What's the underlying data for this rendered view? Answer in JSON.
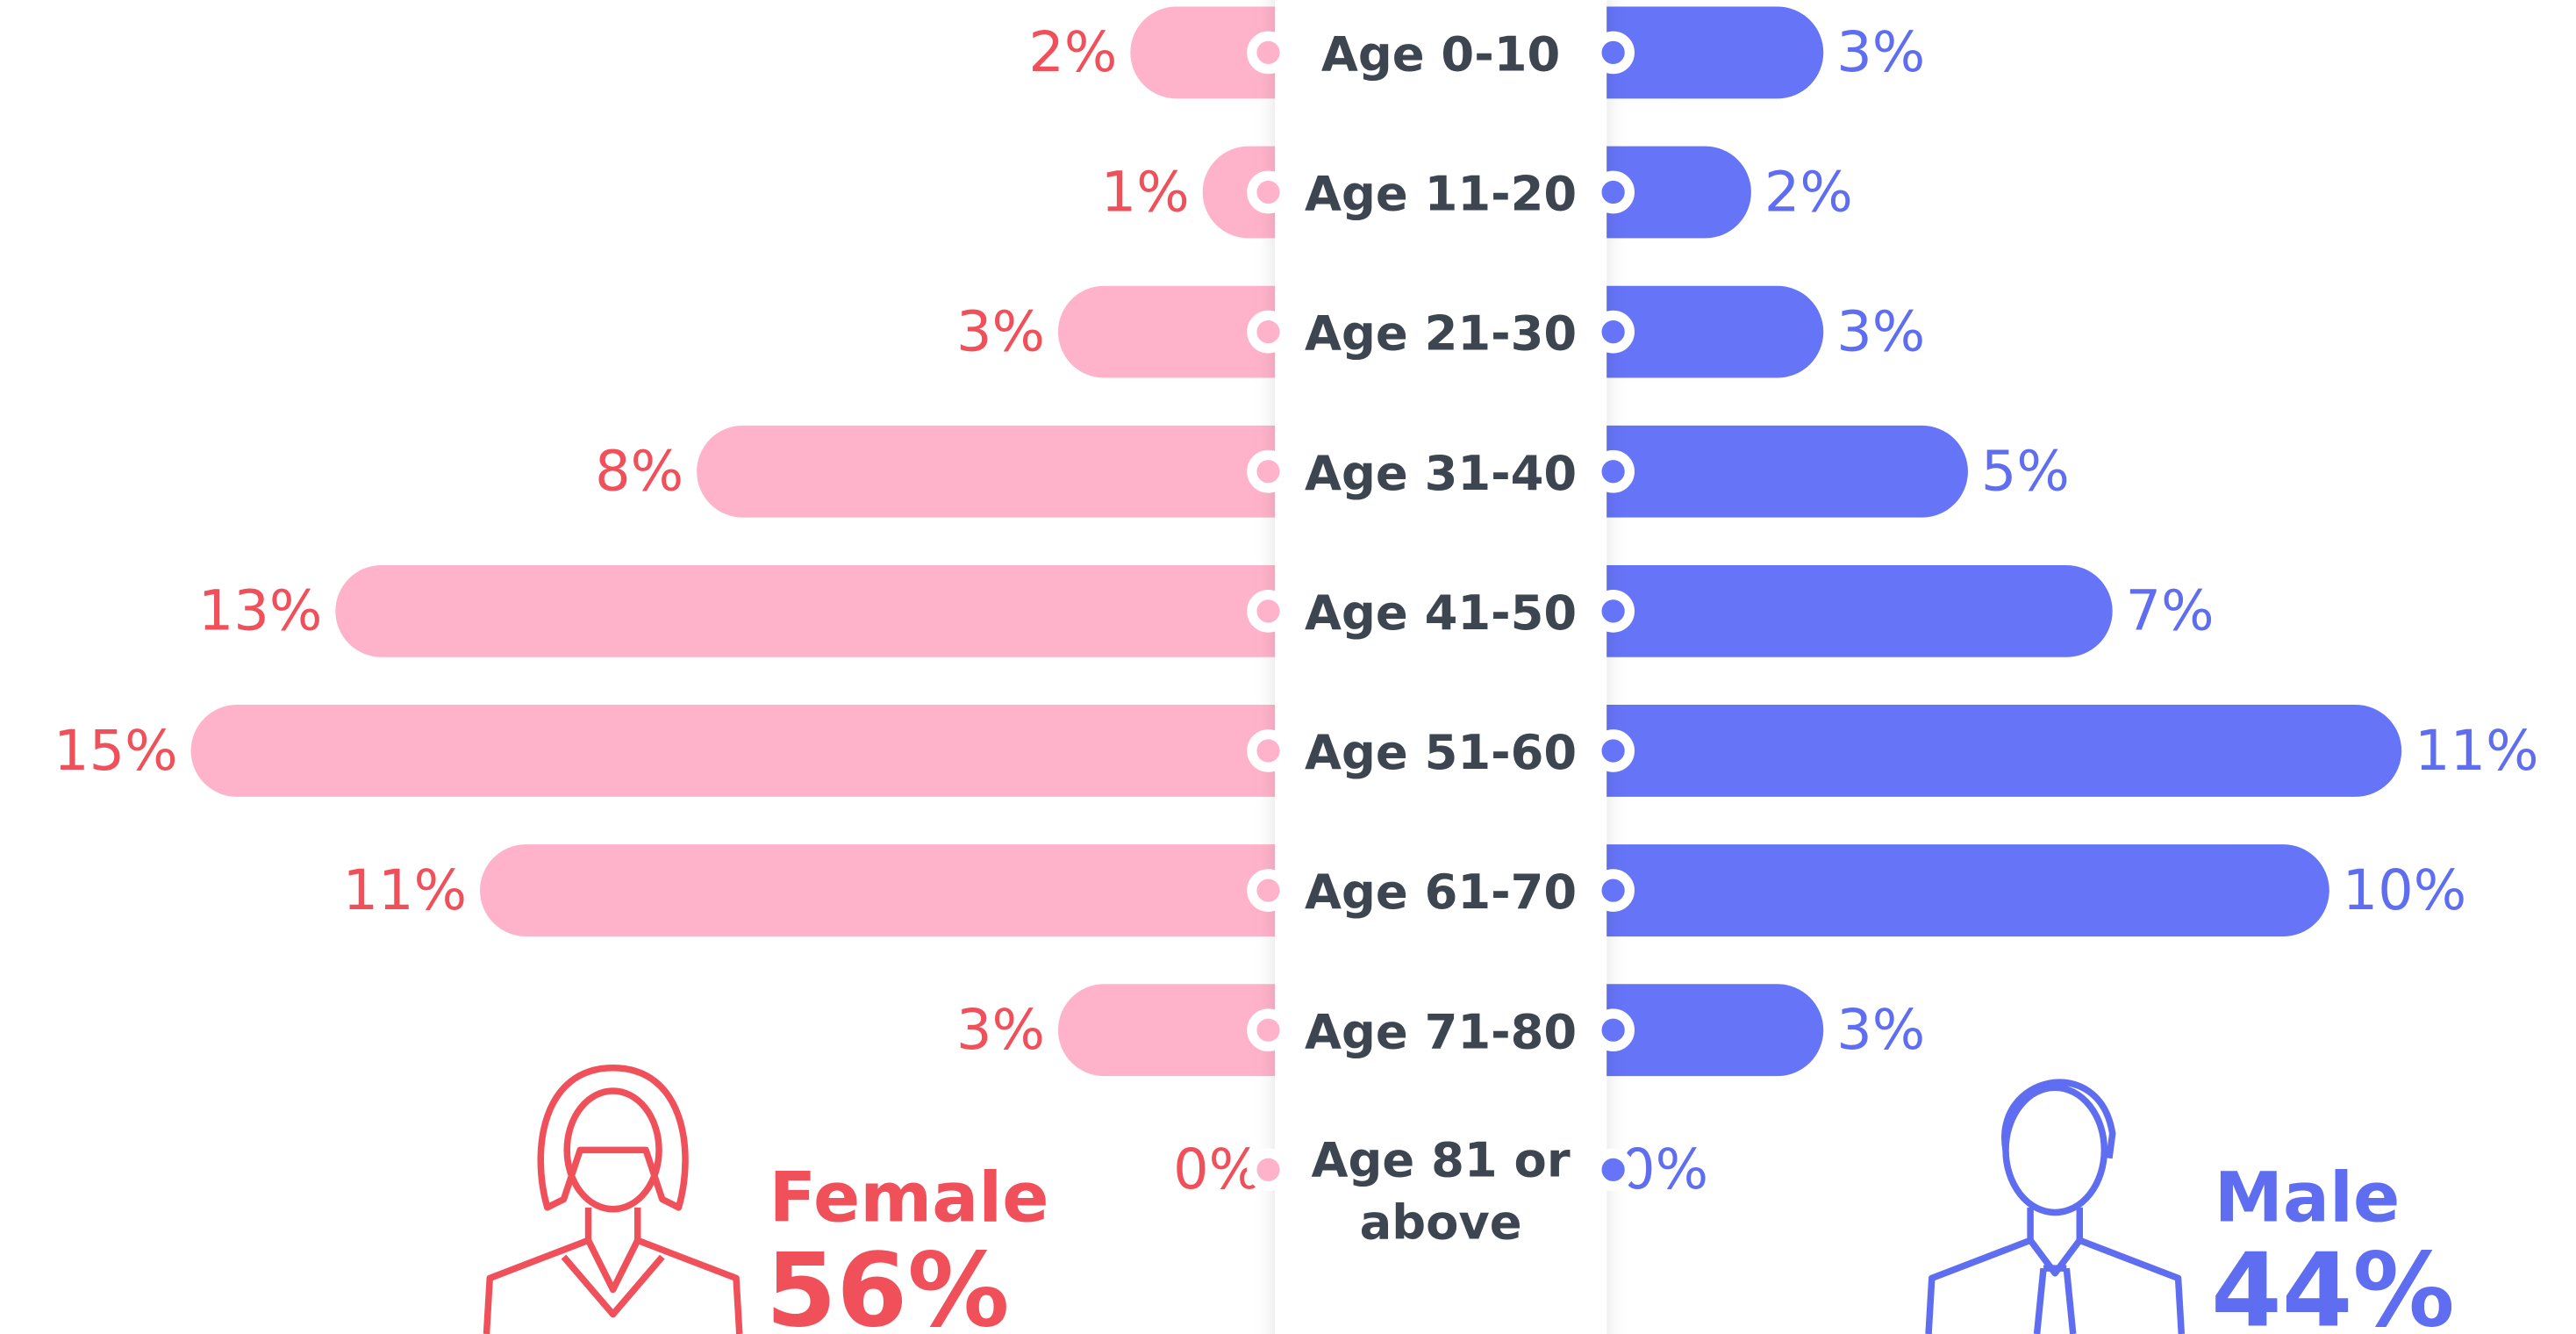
{
  "chart_data": {
    "type": "butterfly",
    "categories": [
      "Age 0-10",
      "Age 11-20",
      "Age 21-30",
      "Age 31-40",
      "Age 41-50",
      "Age 51-60",
      "Age 61-70",
      "Age 71-80",
      "Age 81 or above"
    ],
    "series": [
      {
        "name": "Female",
        "color": "#ffb3cb",
        "label_color": "#f0505a",
        "values": [
          2,
          1,
          3,
          8,
          13,
          15,
          11,
          3,
          0
        ],
        "value_labels": [
          "2%",
          "1%",
          "3%",
          "8%",
          "13%",
          "15%",
          "11%",
          "3%",
          "0%"
        ],
        "total": 56,
        "total_label": "56%"
      },
      {
        "name": "Male",
        "color": "#6674f8",
        "label_color": "#5f6ef0",
        "values": [
          3,
          2,
          3,
          5,
          7,
          11,
          10,
          3,
          0
        ],
        "value_labels": [
          "3%",
          "2%",
          "3%",
          "5%",
          "7%",
          "11%",
          "10%",
          "3%",
          "0%"
        ],
        "total": 44,
        "total_label": "44%"
      }
    ]
  }
}
